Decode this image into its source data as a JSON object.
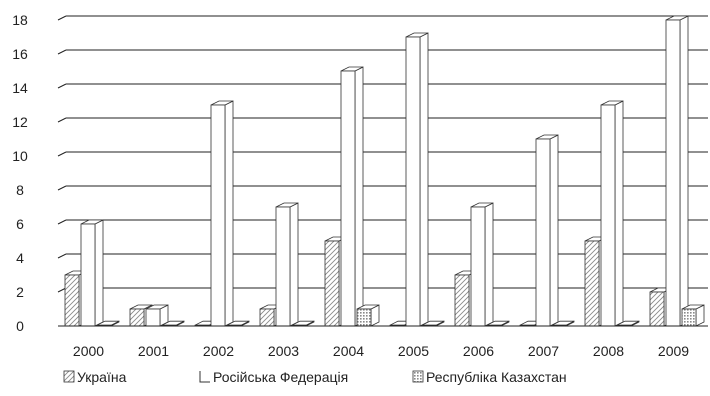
{
  "chart_data": {
    "type": "bar",
    "categories": [
      "2000",
      "2001",
      "2002",
      "2003",
      "2004",
      "2005",
      "2006",
      "2007",
      "2008",
      "2009"
    ],
    "series": [
      {
        "name": "Україна",
        "values": [
          3,
          1,
          0,
          1,
          5,
          0,
          3,
          0,
          5,
          2
        ]
      },
      {
        "name": "Російська Федерація",
        "values": [
          6,
          1,
          13,
          7,
          15,
          17,
          7,
          11,
          13,
          18
        ]
      },
      {
        "name": "Республіка Казахстан",
        "values": [
          0,
          0,
          0,
          0,
          1,
          0,
          0,
          0,
          0,
          1
        ]
      }
    ],
    "y_ticks": [
      "0",
      "2",
      "4",
      "6",
      "8",
      "10",
      "12",
      "14",
      "16",
      "18"
    ],
    "ylim": [
      0,
      18
    ],
    "grid": true,
    "legend_position": "bottom",
    "title": "",
    "xlabel": "",
    "ylabel": ""
  }
}
